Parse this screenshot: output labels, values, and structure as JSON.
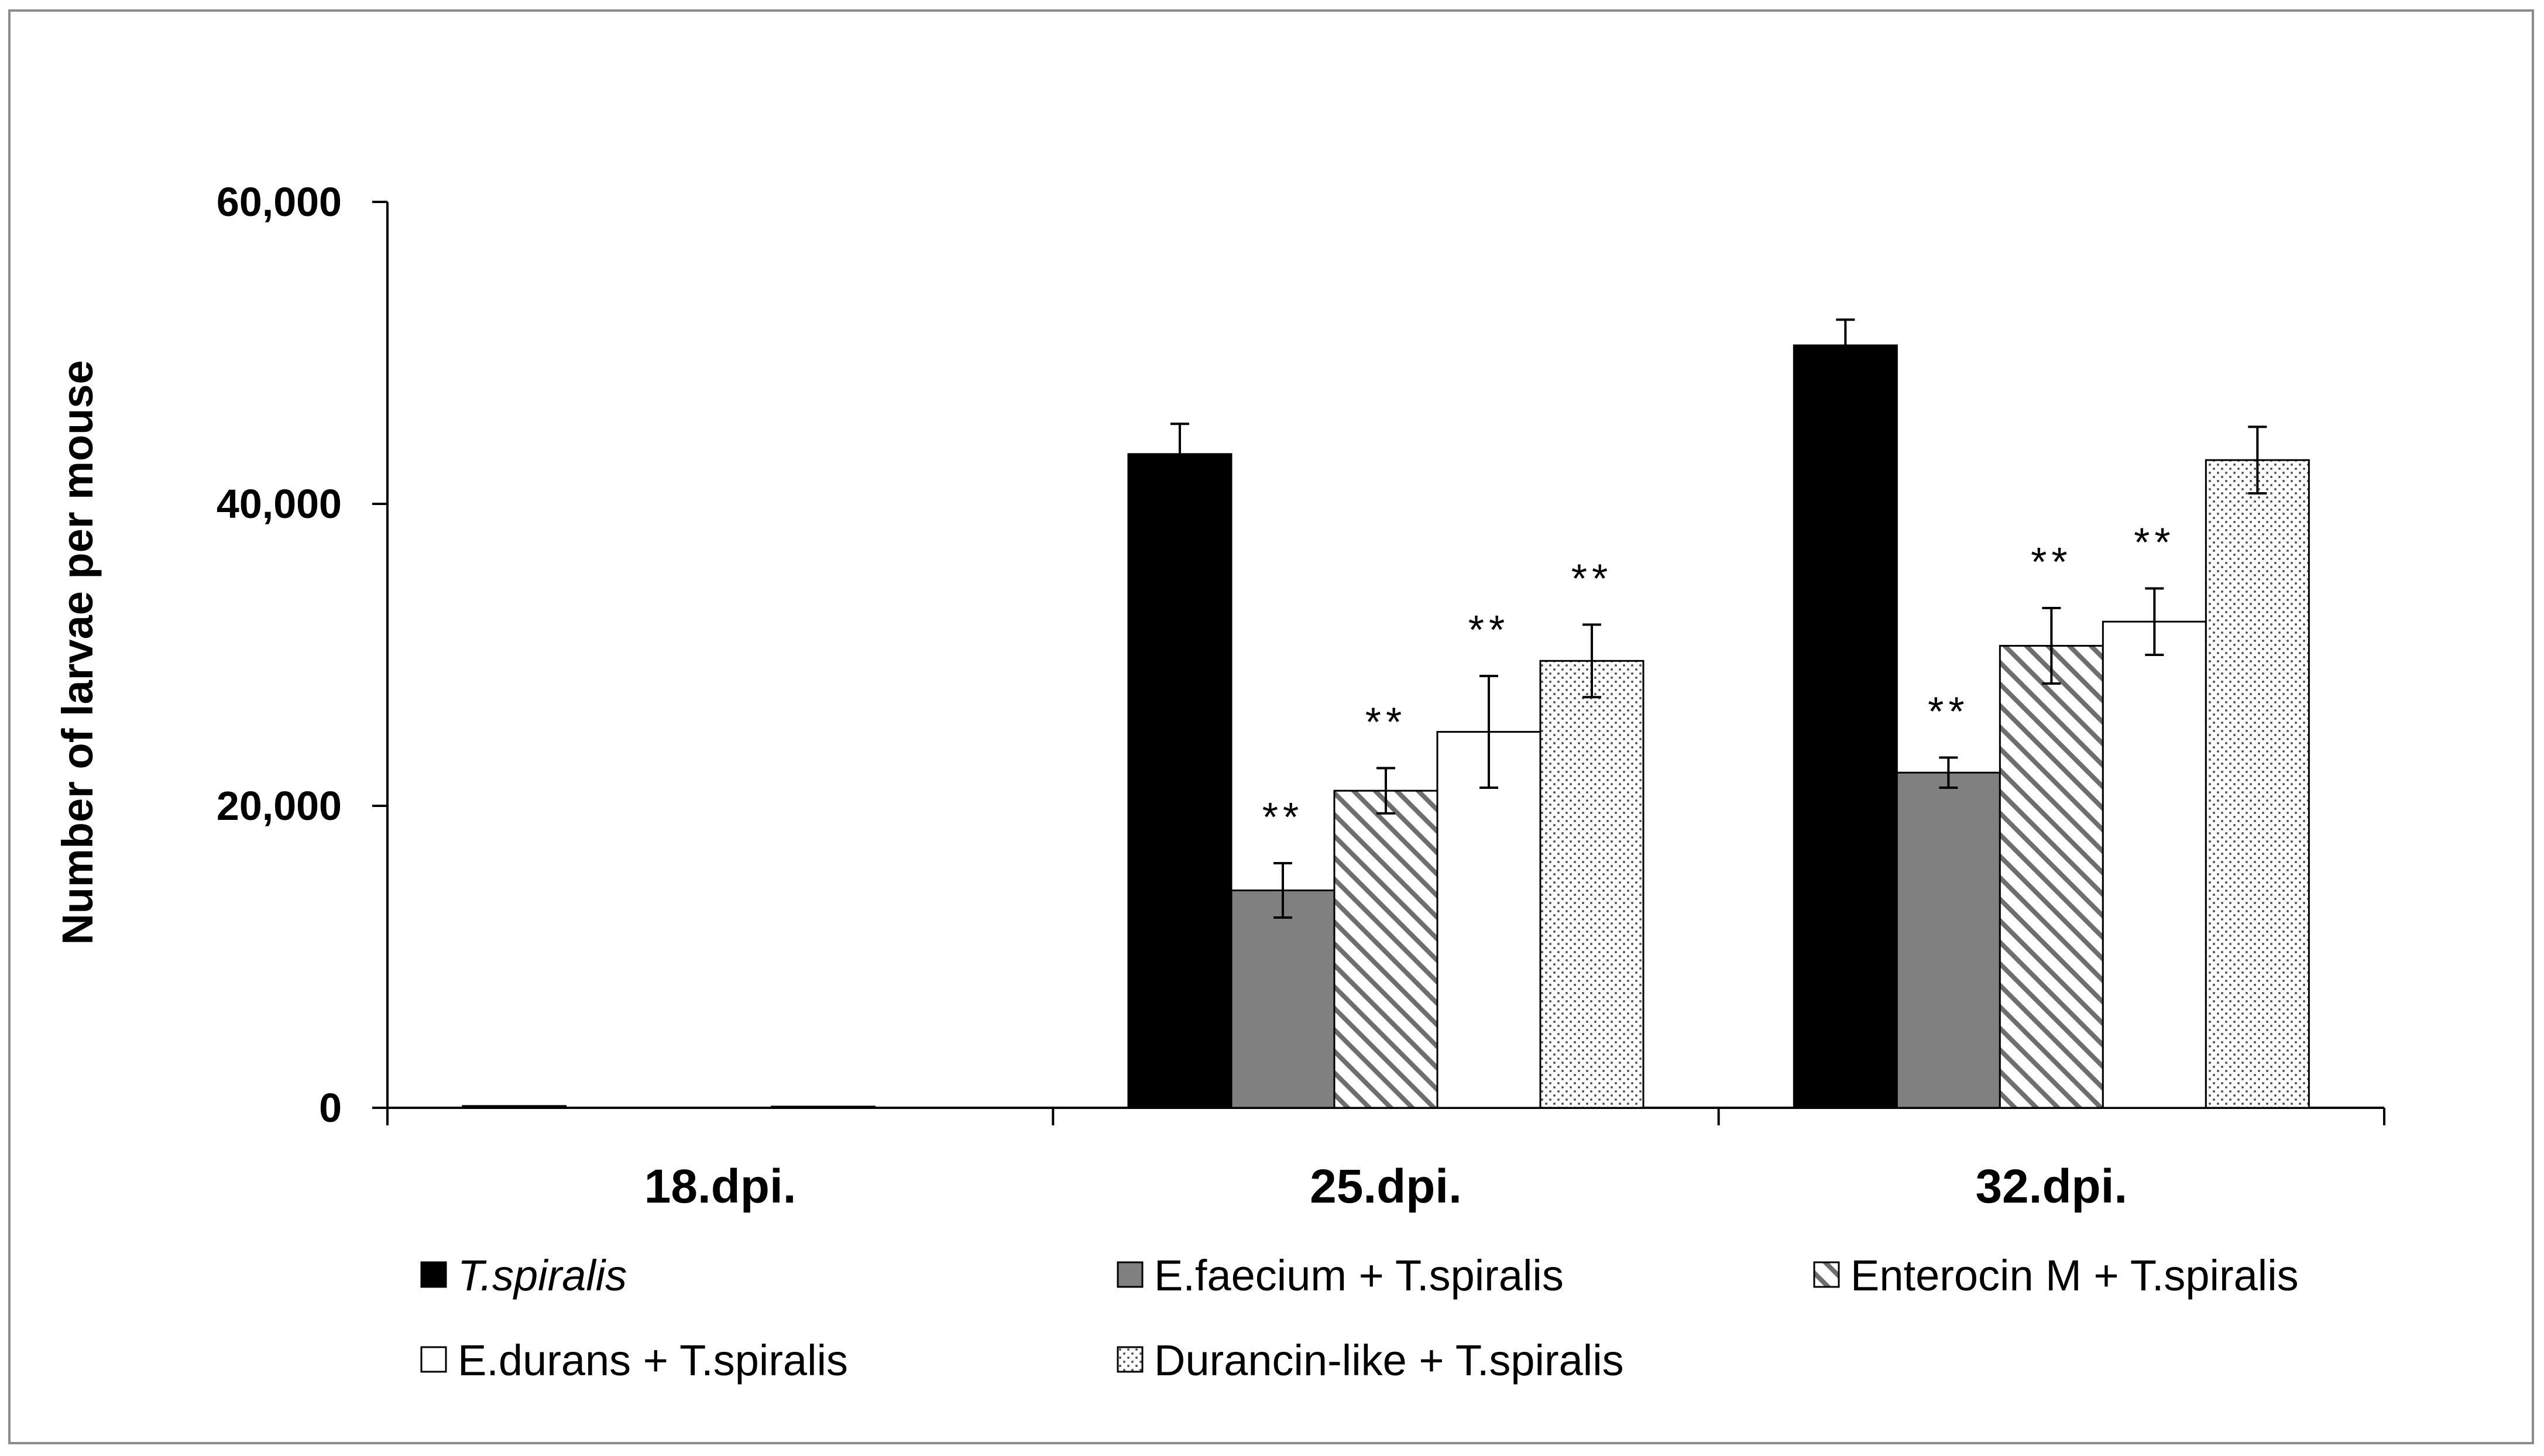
{
  "chart_data": {
    "type": "bar",
    "title": "",
    "xlabel": "",
    "ylabel": "Number of larvae per mouse",
    "ylim": [
      0,
      60000
    ],
    "yticks": [
      0,
      20000,
      40000,
      60000
    ],
    "ytick_labels": [
      "0",
      "20,000",
      "40,000",
      "60,000"
    ],
    "categories": [
      "18.dpi.",
      "25.dpi.",
      "32.dpi."
    ],
    "series": [
      {
        "name": "T.spiralis",
        "italic": true,
        "pattern": "solid-black",
        "values": [
          120,
          43300,
          50500
        ],
        "errors": [
          0,
          2000,
          1700
        ],
        "sig": [
          "",
          "",
          ""
        ]
      },
      {
        "name": "E.faecium + T.spiralis",
        "italic": false,
        "pattern": "solid-gray",
        "values": [
          0,
          14400,
          22200
        ],
        "errors": [
          0,
          1800,
          1000
        ],
        "sig": [
          "",
          "**",
          "**"
        ]
      },
      {
        "name": "Enterocin M + T.spiralis",
        "italic": false,
        "pattern": "diagonal-hatch",
        "values": [
          0,
          21000,
          30600
        ],
        "errors": [
          0,
          1500,
          2500
        ],
        "sig": [
          "",
          "**",
          "**"
        ]
      },
      {
        "name": "E.durans + T.spiralis",
        "italic": false,
        "pattern": "white",
        "values": [
          80,
          24900,
          32200
        ],
        "errors": [
          0,
          3700,
          2200
        ],
        "sig": [
          "",
          "**",
          "**"
        ]
      },
      {
        "name": "Durancin-like + T.spiralis",
        "italic": false,
        "pattern": "dots",
        "values": [
          0,
          29600,
          42900
        ],
        "errors": [
          0,
          2400,
          2200
        ],
        "sig": [
          "",
          "**",
          ""
        ]
      }
    ],
    "legend_position": "bottom",
    "grid": false
  },
  "colors": {
    "black": "#000000",
    "gray": "#808080",
    "white": "#ffffff",
    "frame": "#8c8c8c"
  }
}
